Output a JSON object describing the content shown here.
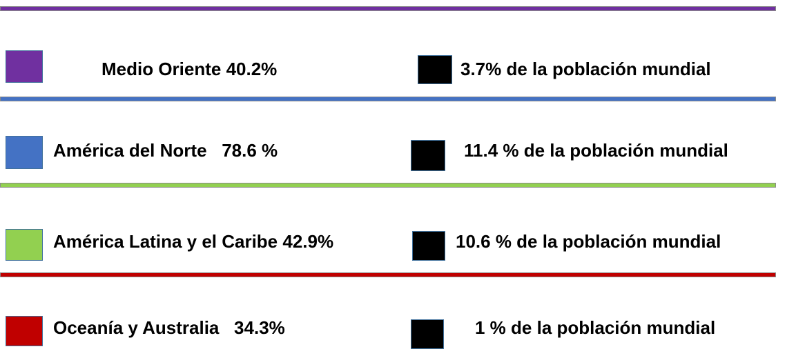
{
  "rows": [
    {
      "color": "#7030a0",
      "label": "Medio Oriente 40.2%",
      "note": "3.7% de la población mundial"
    },
    {
      "color": "#4472c4",
      "label": "América del Norte   78.6 %",
      "note": "11.4 % de la población mundial"
    },
    {
      "color": "#92d050",
      "label": "América Latina y el Caribe 42.9%",
      "note": "10.6 % de la población mundial"
    },
    {
      "color": "#c00000",
      "label": "Oceanía y Australia   34.3%",
      "note": "1 % de la población mundial"
    }
  ],
  "note_color": "#000000"
}
